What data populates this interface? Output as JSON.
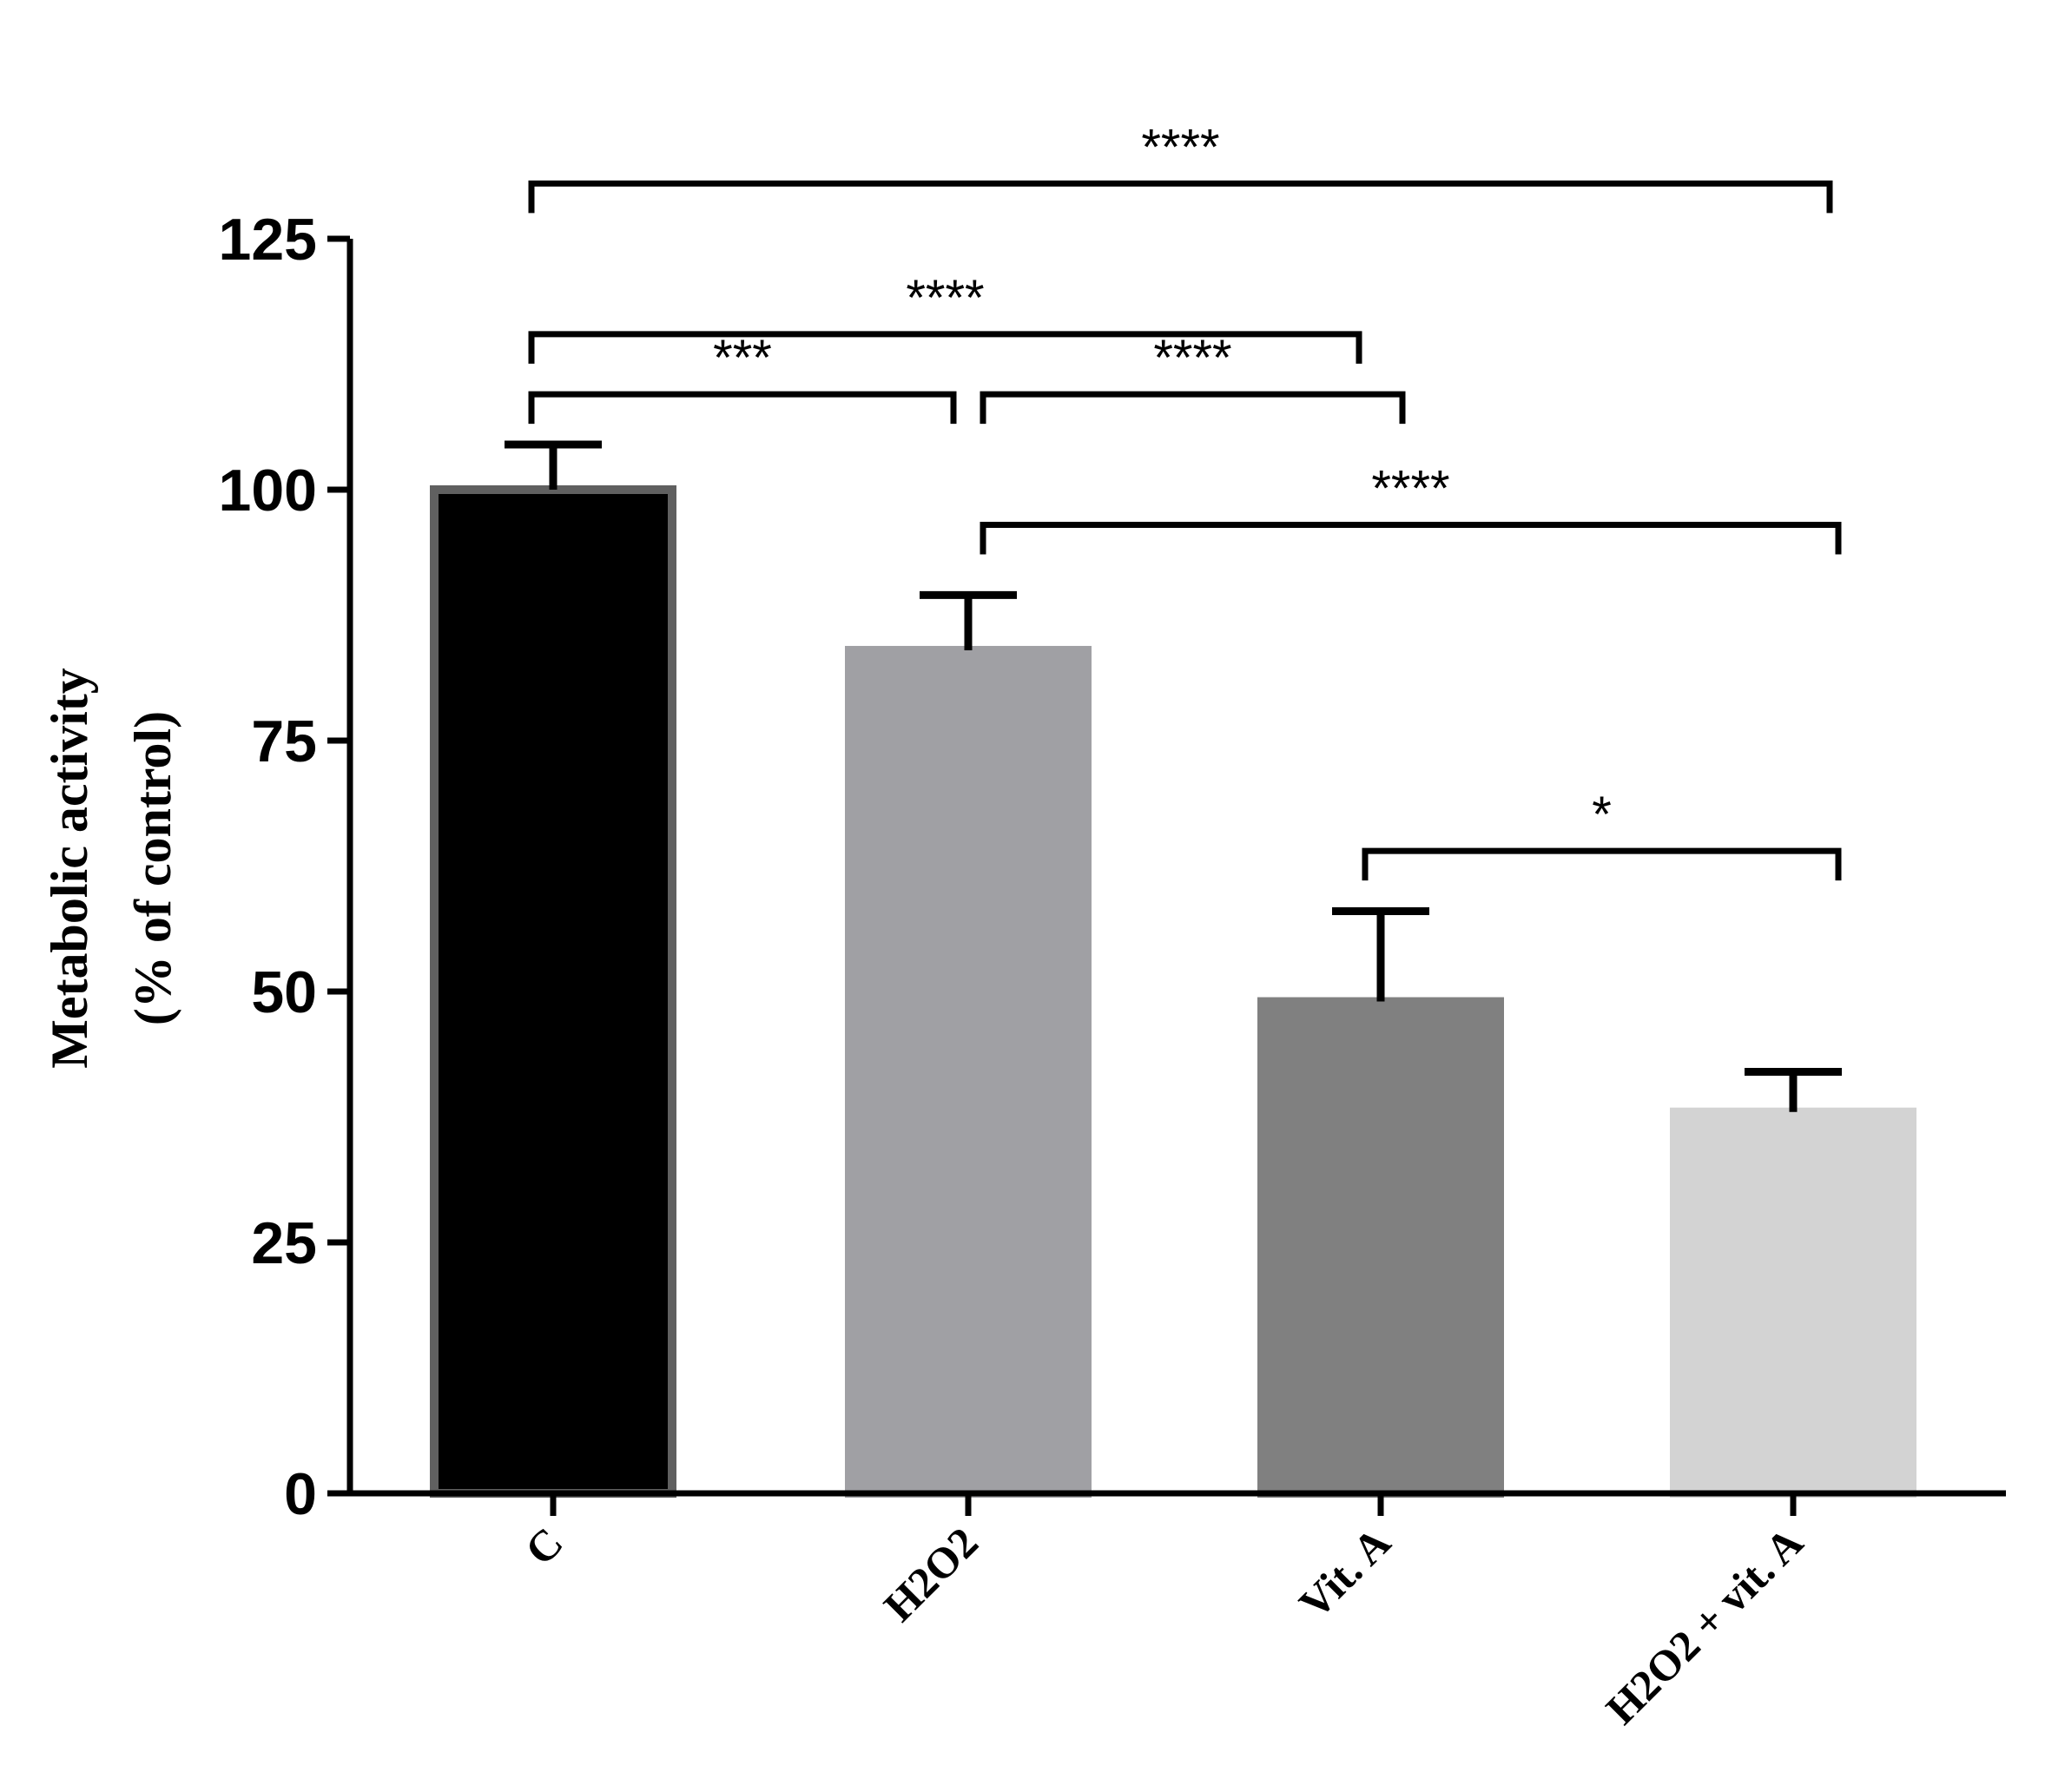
{
  "chart_data": {
    "type": "bar",
    "categories": [
      "C",
      "H2O2",
      "Vit. A",
      "H2O2 + vit. A"
    ],
    "values": [
      100,
      84,
      49,
      38
    ],
    "errors": [
      4.5,
      5.5,
      9,
      4
    ],
    "bar_colors": [
      "#000000",
      "#a0a0a4",
      "#808080",
      "#d3d3d3"
    ],
    "bar_edge_colors": [
      "#606060",
      "#a0a0a4",
      "#808080",
      "#d3d3d3"
    ],
    "title": "",
    "xlabel": "",
    "ylabel_line1": "Metabolic activity",
    "ylabel_line2": "(% of control)",
    "ylim": [
      0,
      125
    ],
    "yticks": [
      0,
      25,
      50,
      75,
      100,
      125
    ],
    "grid": false,
    "significance": [
      {
        "from": 0,
        "to": 3,
        "label": "****",
        "level": 130.5
      },
      {
        "from": 0,
        "to": 2,
        "label": "****",
        "level": 115.5
      },
      {
        "from": 0,
        "to": 1,
        "label": "***",
        "level": 109.5
      },
      {
        "from": 1,
        "to": 2,
        "label": "****",
        "level": 109.5
      },
      {
        "from": 1,
        "to": 3,
        "label": "****",
        "level": 96.5
      },
      {
        "from": 2,
        "to": 3,
        "label": "*",
        "level": 64
      }
    ]
  }
}
